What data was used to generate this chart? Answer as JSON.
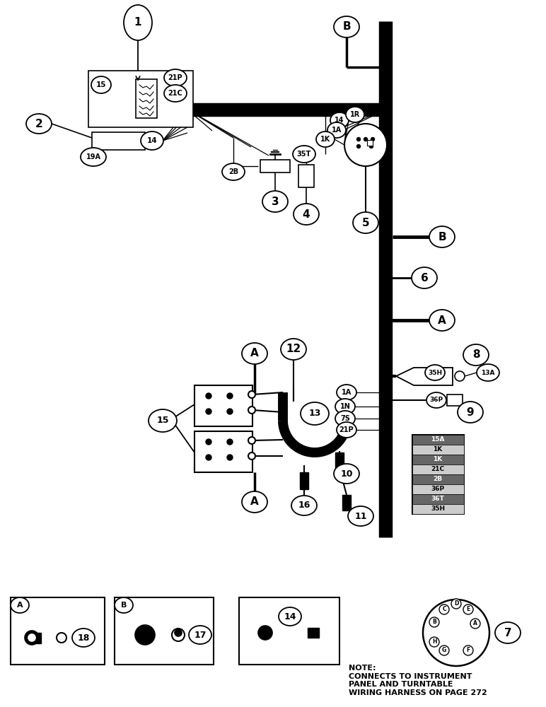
{
  "bg_color": "#ffffff",
  "note_text": "NOTE:\nCONNECTS TO INSTRUMENT\nPANEL AND TURNTABLE\nWIRING HARNESS ON PAGE 272",
  "pin_list": [
    "15A",
    "1K",
    "1K",
    "21C",
    "2B",
    "36P",
    "36T",
    "35H"
  ],
  "fig_width": 7.72,
  "fig_height": 10.0,
  "dpi": 100,
  "harness_lw": 14
}
